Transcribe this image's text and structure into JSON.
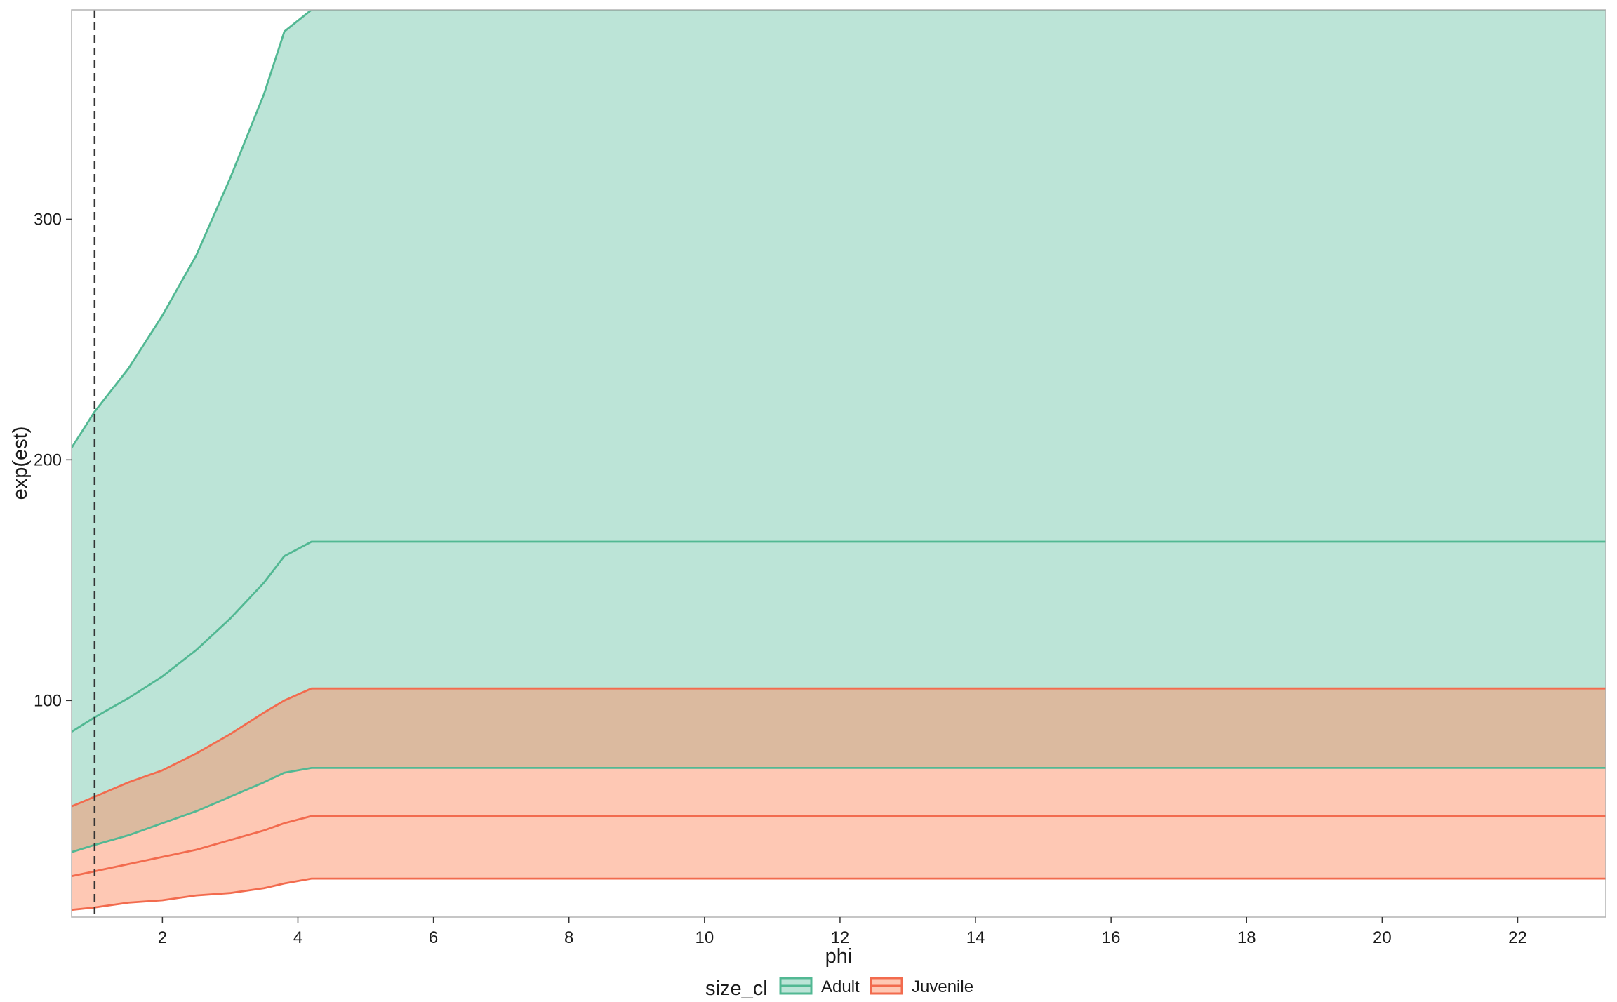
{
  "colors": {
    "adult": "#52B893",
    "juvenile": "#F26B4E",
    "adult_fill": "rgba(102,194,165,0.44)",
    "juvenile_fill": "rgba(252,141,98,0.48)",
    "reference_line": "#333333",
    "panel_border": "#b3b3b3"
  },
  "chart_data": {
    "type": "area",
    "xlabel": "phi",
    "ylabel": "exp(est)",
    "xlim": [
      0.66,
      23.3
    ],
    "ylim": [
      10,
      387
    ],
    "x_ticks": [
      2,
      4,
      6,
      8,
      10,
      12,
      14,
      16,
      18,
      20,
      22
    ],
    "y_ticks": [
      100,
      200,
      300
    ],
    "grid": false,
    "reference_line": {
      "orientation": "vertical",
      "x": 1,
      "style": "dashed"
    },
    "x": [
      0.66,
      1,
      1.5,
      2,
      2.5,
      3,
      3.5,
      3.8,
      4.2,
      6,
      8,
      10,
      12,
      14,
      16,
      18,
      20,
      22,
      23.3
    ],
    "series": [
      {
        "name": "Adult",
        "estimate": [
          87,
          93,
          101,
          110,
          121,
          134,
          149,
          160,
          166,
          166,
          166,
          166,
          166,
          166,
          166,
          166,
          166,
          166,
          166
        ],
        "lower": [
          37,
          40,
          44,
          49,
          54,
          60,
          66,
          70,
          72,
          72,
          72,
          72,
          72,
          72,
          72,
          72,
          72,
          72,
          72
        ],
        "upper": [
          205,
          220,
          238,
          260,
          285,
          317,
          352,
          378,
          387,
          387,
          387,
          387,
          387,
          387,
          387,
          387,
          387,
          387,
          387
        ]
      },
      {
        "name": "Juvenile",
        "estimate": [
          27,
          29,
          32,
          35,
          38,
          42,
          46,
          49,
          52,
          52,
          52,
          52,
          52,
          52,
          52,
          52,
          52,
          52,
          52
        ],
        "lower": [
          13,
          14,
          16,
          17,
          19,
          20,
          22,
          24,
          26,
          26,
          26,
          26,
          26,
          26,
          26,
          26,
          26,
          26,
          26
        ],
        "upper": [
          56,
          60,
          66,
          71,
          78,
          86,
          95,
          100,
          105,
          105,
          105,
          105,
          105,
          105,
          105,
          105,
          105,
          105,
          105
        ]
      }
    ],
    "legend": {
      "title": "size_cl",
      "placement": "bottom",
      "entries": [
        "Adult",
        "Juvenile"
      ]
    }
  }
}
